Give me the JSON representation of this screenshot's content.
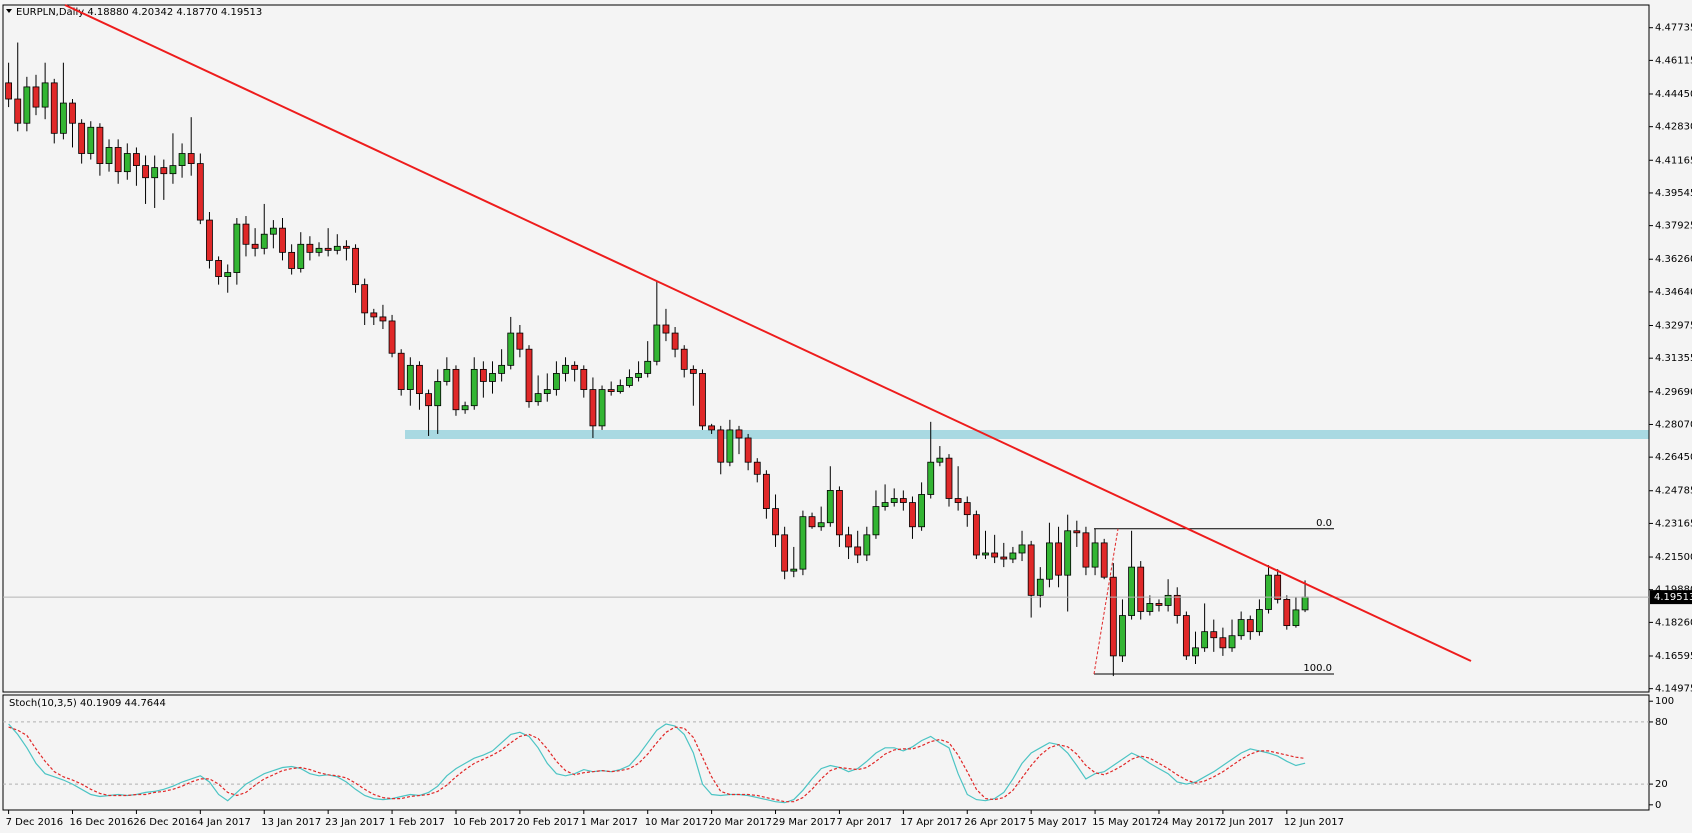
{
  "chart_data": [
    {
      "type": "candlestick",
      "title": "EURPLN,Daily  4.18880 4.20342 4.18770 4.19513",
      "categories": [
        "7 Dec 2016",
        null,
        null,
        null,
        null,
        null,
        null,
        "16 Dec 2016",
        null,
        null,
        null,
        null,
        null,
        null,
        "26 Dec 2016",
        null,
        null,
        null,
        null,
        null,
        null,
        "4 Jan 2017",
        null,
        null,
        null,
        null,
        null,
        null,
        "13 Jan 2017",
        null,
        null,
        null,
        null,
        null,
        null,
        "23 Jan 2017",
        null,
        null,
        null,
        null,
        null,
        null,
        "1 Feb 2017",
        null,
        null,
        null,
        null,
        null,
        null,
        "10 Feb 2017",
        null,
        null,
        null,
        null,
        null,
        null,
        "20 Feb 2017",
        null,
        null,
        null,
        null,
        null,
        null,
        "1 Mar 2017",
        null,
        null,
        null,
        null,
        null,
        null,
        "10 Mar 2017",
        null,
        null,
        null,
        null,
        null,
        null,
        "20 Mar 2017",
        null,
        null,
        null,
        null,
        null,
        null,
        "29 Mar 2017",
        null,
        null,
        null,
        null,
        null,
        null,
        "7 Apr 2017",
        null,
        null,
        null,
        null,
        null,
        null,
        "17 Apr 2017",
        null,
        null,
        null,
        null,
        null,
        null,
        "26 Apr 2017",
        null,
        null,
        null,
        null,
        null,
        null,
        "5 May 2017",
        null,
        null,
        null,
        null,
        null,
        null,
        "15 May 2017",
        null,
        null,
        null,
        null,
        null,
        null,
        "24 May 2017",
        null,
        null,
        null,
        null,
        null,
        null,
        "2 Jun 2017",
        null,
        null,
        null,
        null,
        null,
        null,
        "12 Jun 2017",
        null,
        null
      ],
      "open": [
        4.45,
        4.442,
        4.43,
        4.448,
        4.438,
        4.45,
        4.425,
        4.44,
        4.43,
        4.415,
        4.428,
        4.41,
        4.418,
        4.406,
        4.415,
        4.409,
        4.403,
        4.408,
        4.405,
        4.409,
        4.415,
        4.41,
        4.382,
        4.362,
        4.354,
        4.356,
        4.38,
        4.37,
        4.368,
        4.375,
        4.378,
        4.366,
        4.358,
        4.37,
        4.366,
        4.368,
        4.367,
        4.369,
        4.368,
        4.35,
        4.336,
        4.334,
        4.332,
        4.316,
        4.298,
        4.31,
        4.296,
        4.29,
        4.302,
        4.308,
        4.288,
        4.29,
        4.308,
        4.302,
        4.306,
        4.31,
        4.326,
        4.318,
        4.292,
        4.296,
        4.298,
        4.306,
        4.31,
        4.308,
        4.298,
        4.28,
        4.298,
        4.297,
        4.3,
        4.304,
        4.306,
        4.312,
        4.33,
        4.326,
        4.318,
        4.308,
        4.306,
        4.28,
        4.278,
        4.262,
        4.278,
        4.274,
        4.262,
        4.256,
        4.239,
        4.226,
        4.208,
        4.209,
        4.235,
        4.23,
        4.232,
        4.248,
        4.226,
        4.22,
        4.216,
        4.226,
        4.24,
        4.242,
        4.244,
        4.242,
        4.23,
        4.246,
        4.262,
        4.264,
        4.244,
        4.242,
        4.236,
        4.216,
        4.217,
        4.215,
        4.214,
        4.217,
        4.221,
        4.196,
        4.204,
        4.222,
        4.206,
        4.228,
        4.227,
        4.21,
        4.222,
        4.205,
        4.166,
        4.186,
        4.21,
        4.188,
        4.192,
        4.191,
        4.196,
        4.186,
        4.166,
        4.17,
        4.178,
        4.175,
        4.17,
        4.176,
        4.184,
        4.178,
        4.189,
        4.206,
        4.194,
        4.181,
        4.1888
      ],
      "high": [
        4.46,
        4.47,
        4.453,
        4.454,
        4.46,
        4.452,
        4.46,
        4.442,
        4.432,
        4.431,
        4.43,
        4.422,
        4.422,
        4.42,
        4.418,
        4.414,
        4.414,
        4.412,
        4.425,
        4.42,
        4.433,
        4.415,
        4.386,
        4.364,
        4.36,
        4.383,
        4.384,
        4.378,
        4.39,
        4.382,
        4.383,
        4.37,
        4.376,
        4.374,
        4.371,
        4.378,
        4.375,
        4.372,
        4.37,
        4.353,
        4.338,
        4.34,
        4.335,
        4.318,
        4.314,
        4.312,
        4.298,
        4.308,
        4.314,
        4.31,
        4.292,
        4.314,
        4.312,
        4.312,
        4.318,
        4.334,
        4.33,
        4.32,
        4.305,
        4.306,
        4.312,
        4.314,
        4.312,
        4.31,
        4.304,
        4.3,
        4.302,
        4.303,
        4.308,
        4.312,
        4.322,
        4.352,
        4.338,
        4.329,
        4.32,
        4.31,
        4.308,
        4.281,
        4.28,
        4.283,
        4.28,
        4.276,
        4.264,
        4.258,
        4.246,
        4.23,
        4.22,
        4.238,
        4.237,
        4.24,
        4.26,
        4.25,
        4.23,
        4.228,
        4.23,
        4.248,
        4.251,
        4.249,
        4.248,
        4.245,
        4.252,
        4.282,
        4.27,
        4.266,
        4.26,
        4.245,
        4.238,
        4.228,
        4.226,
        4.222,
        4.22,
        4.228,
        4.223,
        4.21,
        4.232,
        4.23,
        4.236,
        4.233,
        4.23,
        4.229,
        4.224,
        4.212,
        4.194,
        4.228,
        4.213,
        4.196,
        4.194,
        4.204,
        4.2,
        4.188,
        4.178,
        4.192,
        4.184,
        4.18,
        4.184,
        4.188,
        4.186,
        4.194,
        4.211,
        4.209,
        4.196,
        4.195,
        4.20342
      ],
      "low": [
        4.438,
        4.426,
        4.426,
        4.434,
        4.432,
        4.42,
        4.422,
        4.418,
        4.41,
        4.412,
        4.404,
        4.406,
        4.4,
        4.402,
        4.399,
        4.39,
        4.388,
        4.392,
        4.4,
        4.403,
        4.404,
        4.38,
        4.358,
        4.35,
        4.346,
        4.35,
        4.364,
        4.364,
        4.365,
        4.368,
        4.362,
        4.355,
        4.356,
        4.362,
        4.364,
        4.364,
        4.365,
        4.362,
        4.346,
        4.33,
        4.33,
        4.328,
        4.314,
        4.295,
        4.29,
        4.288,
        4.275,
        4.276,
        4.3,
        4.285,
        4.286,
        4.288,
        4.294,
        4.296,
        4.302,
        4.308,
        4.314,
        4.289,
        4.29,
        4.292,
        4.295,
        4.302,
        4.302,
        4.294,
        4.274,
        4.278,
        4.295,
        4.296,
        4.299,
        4.302,
        4.304,
        4.31,
        4.322,
        4.314,
        4.304,
        4.29,
        4.278,
        4.276,
        4.256,
        4.26,
        4.266,
        4.258,
        4.252,
        4.234,
        4.22,
        4.204,
        4.205,
        4.206,
        4.229,
        4.228,
        4.23,
        4.22,
        4.214,
        4.212,
        4.213,
        4.224,
        4.238,
        4.24,
        4.238,
        4.224,
        4.228,
        4.244,
        4.26,
        4.24,
        4.238,
        4.23,
        4.214,
        4.214,
        4.212,
        4.21,
        4.212,
        4.213,
        4.185,
        4.19,
        4.2,
        4.2,
        4.188,
        4.22,
        4.206,
        4.206,
        4.204,
        4.156,
        4.163,
        4.184,
        4.184,
        4.186,
        4.188,
        4.188,
        4.182,
        4.164,
        4.162,
        4.168,
        4.168,
        4.166,
        4.168,
        4.174,
        4.174,
        4.176,
        4.187,
        4.192,
        4.179,
        4.18,
        4.1877
      ],
      "close": [
        4.442,
        4.43,
        4.448,
        4.438,
        4.45,
        4.425,
        4.44,
        4.43,
        4.415,
        4.428,
        4.41,
        4.418,
        4.406,
        4.415,
        4.409,
        4.403,
        4.408,
        4.405,
        4.409,
        4.415,
        4.41,
        4.382,
        4.362,
        4.354,
        4.356,
        4.38,
        4.37,
        4.368,
        4.375,
        4.378,
        4.366,
        4.358,
        4.37,
        4.366,
        4.368,
        4.367,
        4.369,
        4.368,
        4.35,
        4.336,
        4.334,
        4.332,
        4.316,
        4.298,
        4.31,
        4.296,
        4.29,
        4.302,
        4.308,
        4.288,
        4.29,
        4.308,
        4.302,
        4.306,
        4.31,
        4.326,
        4.318,
        4.292,
        4.296,
        4.298,
        4.306,
        4.31,
        4.308,
        4.298,
        4.28,
        4.298,
        4.297,
        4.3,
        4.304,
        4.306,
        4.312,
        4.33,
        4.326,
        4.318,
        4.308,
        4.306,
        4.28,
        4.278,
        4.262,
        4.278,
        4.274,
        4.262,
        4.256,
        4.239,
        4.226,
        4.208,
        4.209,
        4.235,
        4.23,
        4.232,
        4.248,
        4.226,
        4.22,
        4.216,
        4.226,
        4.24,
        4.242,
        4.244,
        4.242,
        4.23,
        4.246,
        4.262,
        4.264,
        4.244,
        4.242,
        4.236,
        4.216,
        4.217,
        4.215,
        4.214,
        4.217,
        4.221,
        4.196,
        4.204,
        4.222,
        4.206,
        4.228,
        4.227,
        4.21,
        4.222,
        4.205,
        4.166,
        4.186,
        4.21,
        4.188,
        4.192,
        4.191,
        4.196,
        4.186,
        4.166,
        4.17,
        4.178,
        4.175,
        4.17,
        4.176,
        4.184,
        4.178,
        4.189,
        4.206,
        4.194,
        4.181,
        4.1888,
        4.19513
      ],
      "up_color": "#33b533",
      "down_color": "#e02828",
      "ylim": [
        4.1481,
        4.4886
      ],
      "yticks": [
        4.47735,
        4.46115,
        {
          "value": 4.4445,
          "label": "4.44450"
        },
        {
          "value": 4.4283,
          "label": "4.42830"
        },
        4.41165,
        4.39545,
        4.37925,
        {
          "value": 4.3626,
          "label": "4.36260"
        },
        {
          "value": 4.3464,
          "label": "4.34640"
        },
        4.32975,
        4.31355,
        {
          "value": 4.2969,
          "label": "4.29690"
        },
        {
          "value": 4.2807,
          "label": "4.28070"
        },
        {
          "value": 4.2645,
          "label": "4.26450"
        },
        4.24785,
        4.23165,
        {
          "value": 4.215,
          "label": "4.21500"
        },
        {
          "value": 4.1988,
          "label": "4.19880"
        },
        {
          "value": 4.1826,
          "label": "4.18260"
        },
        4.16595,
        4.14975
      ],
      "fib_levels": [
        {
          "value": 4.229,
          "label": "0.0"
        },
        {
          "value": 4.157,
          "label": "100.0"
        }
      ]
    },
    {
      "type": "line",
      "title": "Stoch(10,3,5) 40.1909 44.7644",
      "series": [
        {
          "color": "#4cc4c4",
          "dash": false,
          "values": [
            78,
            68,
            55,
            40,
            30,
            27,
            24,
            20,
            15,
            10,
            8,
            9,
            10,
            9,
            10,
            12,
            13,
            15,
            18,
            22,
            25,
            28,
            22,
            10,
            4,
            12,
            20,
            25,
            30,
            33,
            36,
            37,
            35,
            30,
            28,
            29,
            27,
            22,
            15,
            9,
            6,
            5,
            6,
            8,
            10,
            9,
            12,
            18,
            28,
            35,
            40,
            45,
            48,
            52,
            60,
            68,
            70,
            66,
            55,
            40,
            30,
            28,
            30,
            34,
            32,
            33,
            32,
            34,
            38,
            48,
            60,
            72,
            78,
            76,
            68,
            50,
            20,
            10,
            9,
            10,
            10,
            9,
            7,
            5,
            3,
            2,
            5,
            14,
            25,
            35,
            38,
            36,
            32,
            35,
            42,
            50,
            55,
            55,
            52,
            56,
            62,
            66,
            60,
            55,
            30,
            10,
            5,
            4,
            6,
            12,
            25,
            40,
            50,
            55,
            60,
            58,
            50,
            38,
            25,
            30,
            32,
            38,
            44,
            50,
            46,
            40,
            35,
            30,
            22,
            20,
            22,
            27,
            32,
            38,
            44,
            50,
            54,
            52,
            50,
            47,
            42,
            38,
            40.1909
          ]
        },
        {
          "color": "#e02828",
          "dash": true,
          "values": [
            75,
            72,
            67,
            54,
            42,
            32,
            27,
            24,
            20,
            15,
            11,
            9,
            9,
            9,
            10,
            10,
            12,
            13,
            15,
            18,
            22,
            25,
            25,
            20,
            12,
            9,
            12,
            19,
            25,
            29,
            33,
            35,
            36,
            34,
            31,
            29,
            28,
            26,
            21,
            15,
            10,
            7,
            6,
            6,
            8,
            9,
            10,
            13,
            19,
            27,
            34,
            40,
            44,
            48,
            53,
            60,
            66,
            68,
            64,
            54,
            42,
            33,
            29,
            31,
            32,
            33,
            32,
            33,
            35,
            40,
            49,
            60,
            70,
            75,
            74,
            65,
            46,
            27,
            13,
            10,
            10,
            10,
            9,
            7,
            5,
            3,
            3,
            7,
            15,
            25,
            33,
            36,
            35,
            34,
            36,
            42,
            49,
            53,
            54,
            54,
            57,
            61,
            63,
            60,
            48,
            32,
            15,
            6,
            5,
            7,
            14,
            26,
            38,
            48,
            55,
            58,
            56,
            49,
            38,
            31,
            29,
            33,
            38,
            44,
            47,
            45,
            40,
            35,
            29,
            24,
            21,
            23,
            27,
            32,
            38,
            44,
            49,
            52,
            52,
            50,
            48,
            46,
            44.7644
          ]
        }
      ],
      "ylim": [
        -5,
        106
      ],
      "yticks": [
        0,
        20,
        80,
        100
      ],
      "levels": [
        20,
        80
      ]
    }
  ]
}
